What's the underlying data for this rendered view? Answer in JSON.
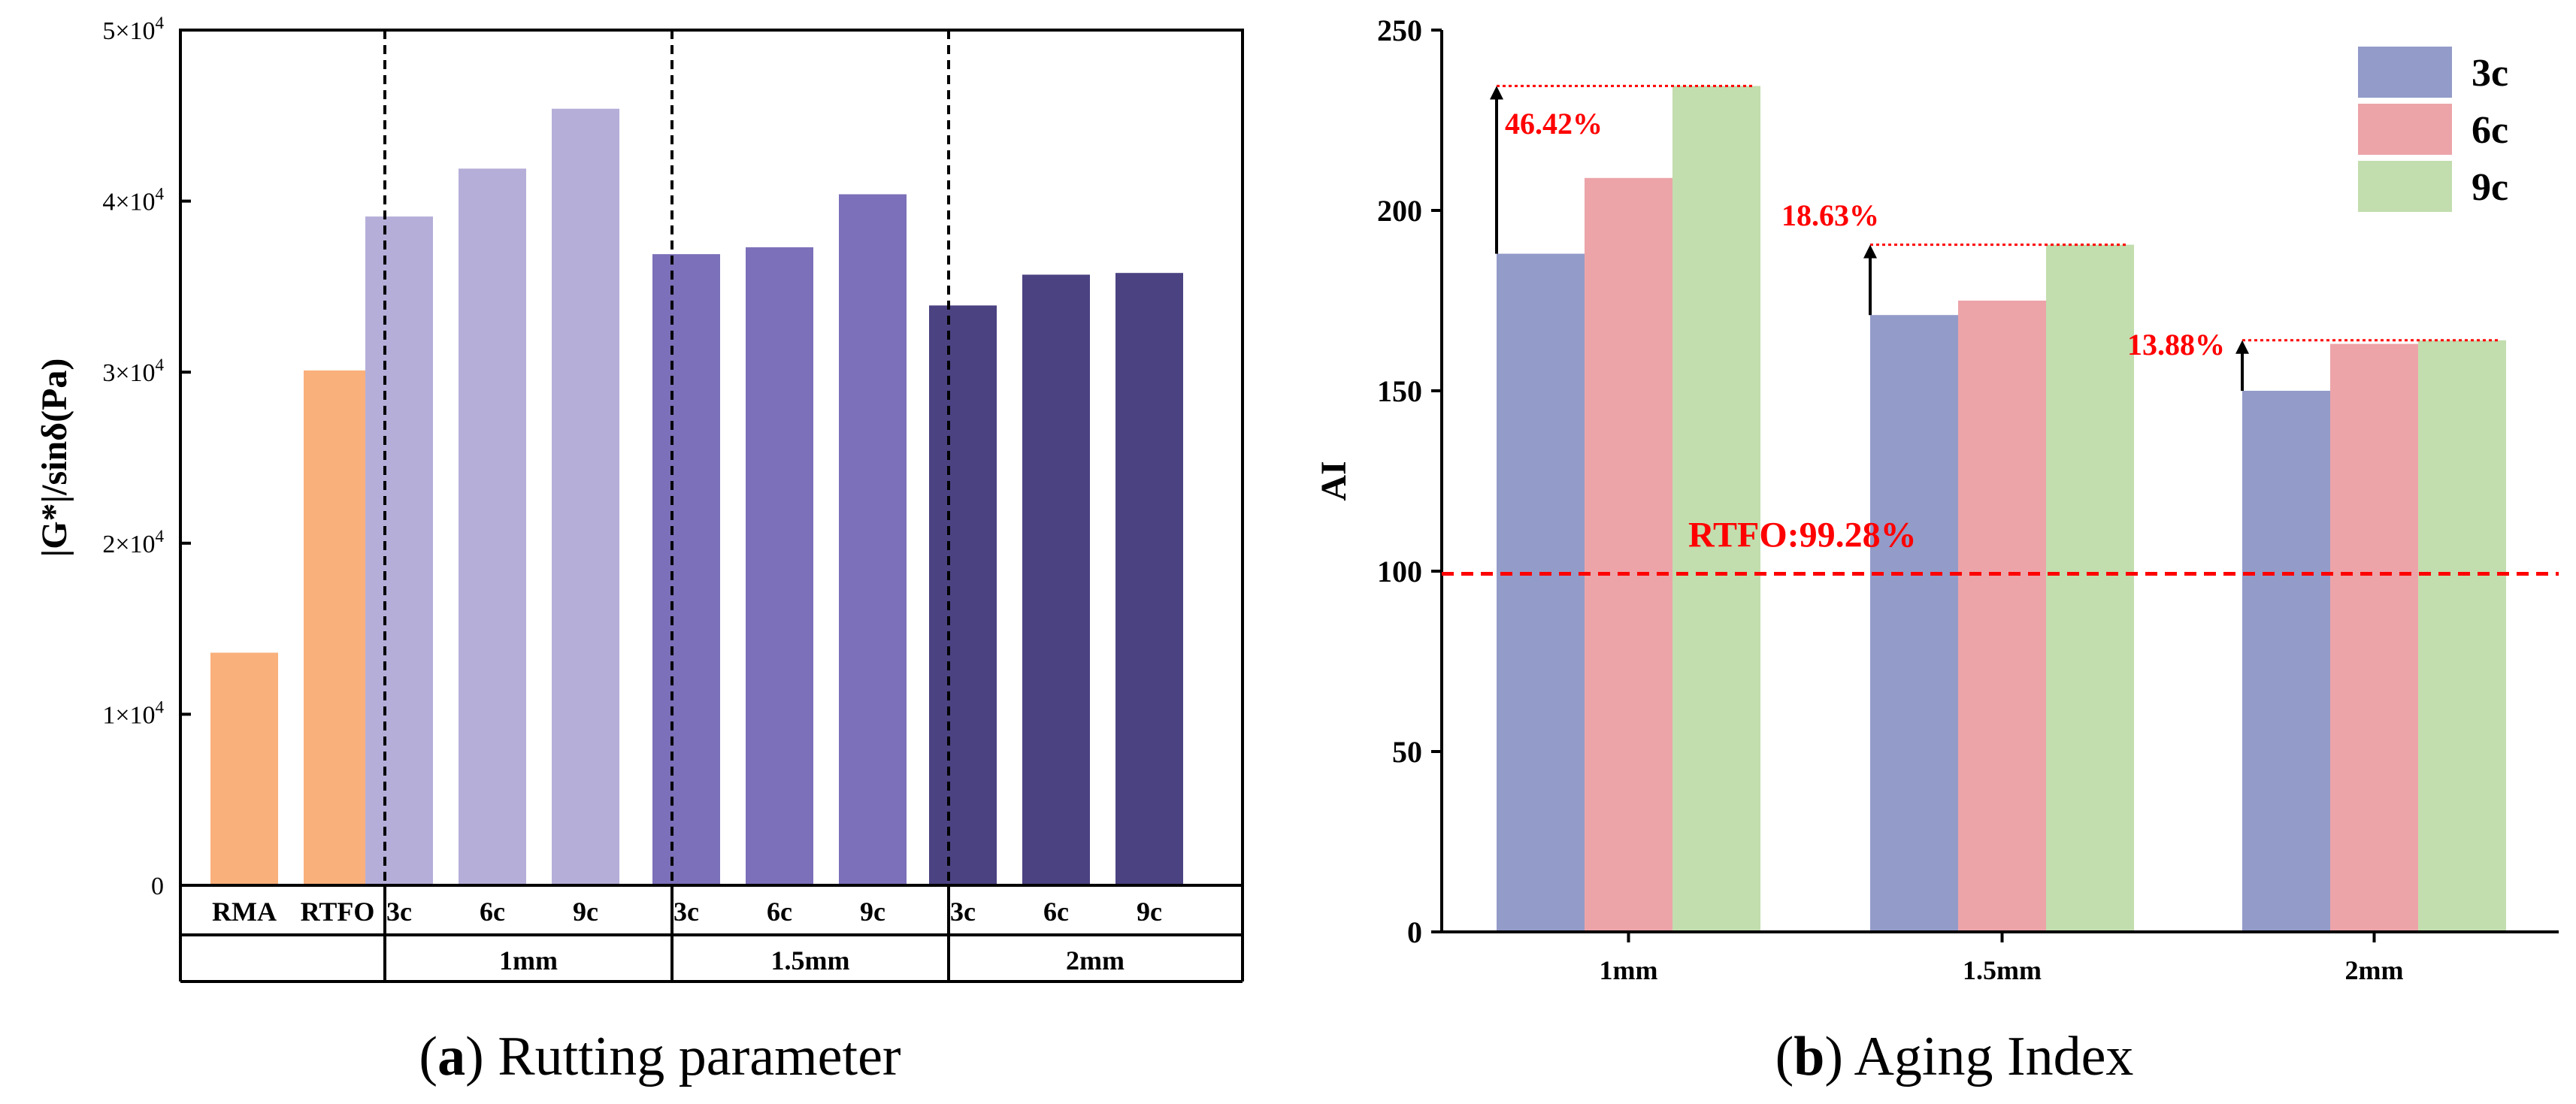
{
  "chart_data": [
    {
      "type": "bar",
      "ylabel": "|G*|/sinδ(Pa)",
      "ylim": [
        0,
        50000
      ],
      "y_ticks": [
        {
          "mant": "0",
          "exp": ""
        },
        {
          "mant": "1×10",
          "exp": "4"
        },
        {
          "mant": "2×10",
          "exp": "4"
        },
        {
          "mant": "3×10",
          "exp": "4"
        },
        {
          "mant": "4×10",
          "exp": "4"
        },
        {
          "mant": "5×10",
          "exp": "4"
        }
      ],
      "categories": [
        "RMA",
        "RTFO",
        "3c",
        "6c",
        "9c",
        "3c",
        "6c",
        "9c",
        "3c",
        "6c",
        "9c"
      ],
      "values": [
        13600,
        30100,
        39100,
        41900,
        45400,
        36900,
        37300,
        40400,
        33900,
        35700,
        35800
      ],
      "bar_colors": [
        "#f9b07b",
        "#f9b07b",
        "#b5aed9",
        "#b5aed9",
        "#b5aed9",
        "#7b70b9",
        "#7b70b9",
        "#7b70b9",
        "#4b4282",
        "#4b4282",
        "#4b4282"
      ],
      "groups": [
        "",
        "1mm",
        "1.5mm",
        "2mm"
      ],
      "caption": {
        "letter": "a",
        "text": " Rutting parameter"
      }
    },
    {
      "type": "bar",
      "ylabel": "AI",
      "ylim": [
        0,
        250
      ],
      "y_ticks": [
        "0",
        "50",
        "100",
        "150",
        "200",
        "250"
      ],
      "categories": [
        "1mm",
        "1.5mm",
        "2mm"
      ],
      "series": [
        {
          "name": "3c",
          "color": "#939bc9",
          "values": [
            188,
            171,
            150
          ]
        },
        {
          "name": "6c",
          "color": "#eca4a9",
          "values": [
            209,
            175,
            163
          ]
        },
        {
          "name": "9c",
          "color": "#c2ddae",
          "values": [
            234.5,
            190.5,
            164
          ]
        }
      ],
      "reference_line": {
        "value": 99.28,
        "label": "RTFO:99.28%",
        "color": "#ff0000"
      },
      "increase_labels": [
        "46.42%",
        "18.63%",
        "13.88%"
      ],
      "caption": {
        "letter": "b",
        "text": " Aging Index"
      }
    }
  ]
}
